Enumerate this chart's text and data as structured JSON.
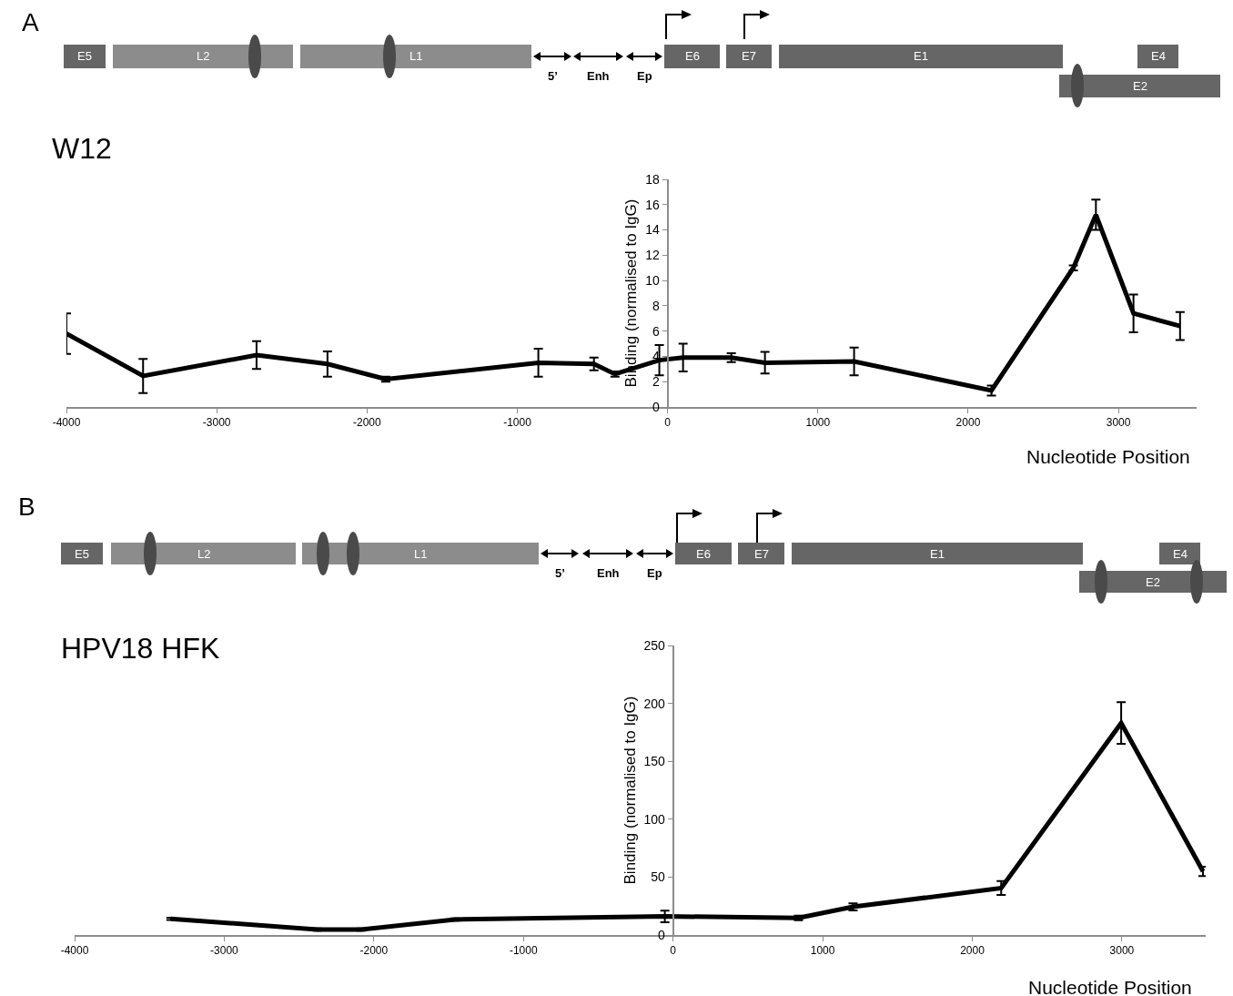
{
  "chart_data": [
    {
      "type": "line",
      "title": "W12",
      "xlabel": "Nucleotide Position",
      "ylabel": "Binding (normalised to IgG)",
      "annotations": [
        "A",
        "E5",
        "L2",
        "L1",
        "5’",
        "Enh",
        "Ep",
        "E6",
        "E7",
        "E1",
        "E4",
        "E2"
      ],
      "x": [
        -4000,
        -3490,
        -2735,
        -2263,
        -1875,
        -860,
        -490,
        -350,
        -55,
        103,
        424,
        648,
        1241,
        2155,
        2700,
        2850,
        3100,
        3410
      ],
      "series": [
        {
          "color": "#000000",
          "values": [
            5.8,
            2.45,
            4.1,
            3.4,
            2.2,
            3.5,
            3.4,
            2.6,
            3.7,
            3.9,
            3.9,
            3.5,
            3.6,
            1.3,
            11.0,
            15.2,
            7.4,
            6.4
          ],
          "errors": [
            1.6,
            1.35,
            1.1,
            1.0,
            0.2,
            1.1,
            0.5,
            0.2,
            1.2,
            1.1,
            0.35,
            0.85,
            1.1,
            0.4,
            0.2,
            1.2,
            1.5,
            1.1
          ]
        }
      ],
      "xlim": [
        -4000,
        3520
      ],
      "ylim": [
        0,
        18
      ],
      "xticks": [
        -4000,
        -3000,
        -2000,
        -1000,
        0,
        1000,
        2000,
        3000
      ],
      "yticks": [
        0,
        2,
        4,
        6,
        8,
        10,
        12,
        14,
        16,
        18
      ]
    },
    {
      "type": "line",
      "title": "HPV18 HFK",
      "xlabel": "Nucleotide Position",
      "ylabel": "Binding (normalised to IgG)",
      "annotations": [
        "B",
        "E5",
        "L2",
        "L1",
        "5’",
        "Enh",
        "Ep",
        "E6",
        "E7",
        "E1",
        "E4",
        "E2"
      ],
      "x": [
        -3356,
        -2378,
        -2084,
        -1458,
        -55,
        838,
        1203,
        2193,
        2995,
        3542
      ],
      "series": [
        {
          "color": "#000000",
          "values": [
            14,
            4.7,
            4.7,
            13.4,
            16.1,
            14.8,
            24.3,
            40.5,
            183,
            55
          ],
          "errors": [
            1,
            1,
            1,
            1,
            5,
            2,
            3,
            6,
            18,
            4
          ]
        }
      ],
      "xlim": [
        -4000,
        3560
      ],
      "ylim": [
        0,
        250
      ],
      "xticks": [
        -4000,
        -3000,
        -2000,
        -1000,
        0,
        1000,
        2000,
        3000
      ],
      "yticks": [
        0,
        50,
        100,
        150,
        200,
        250
      ]
    }
  ]
}
